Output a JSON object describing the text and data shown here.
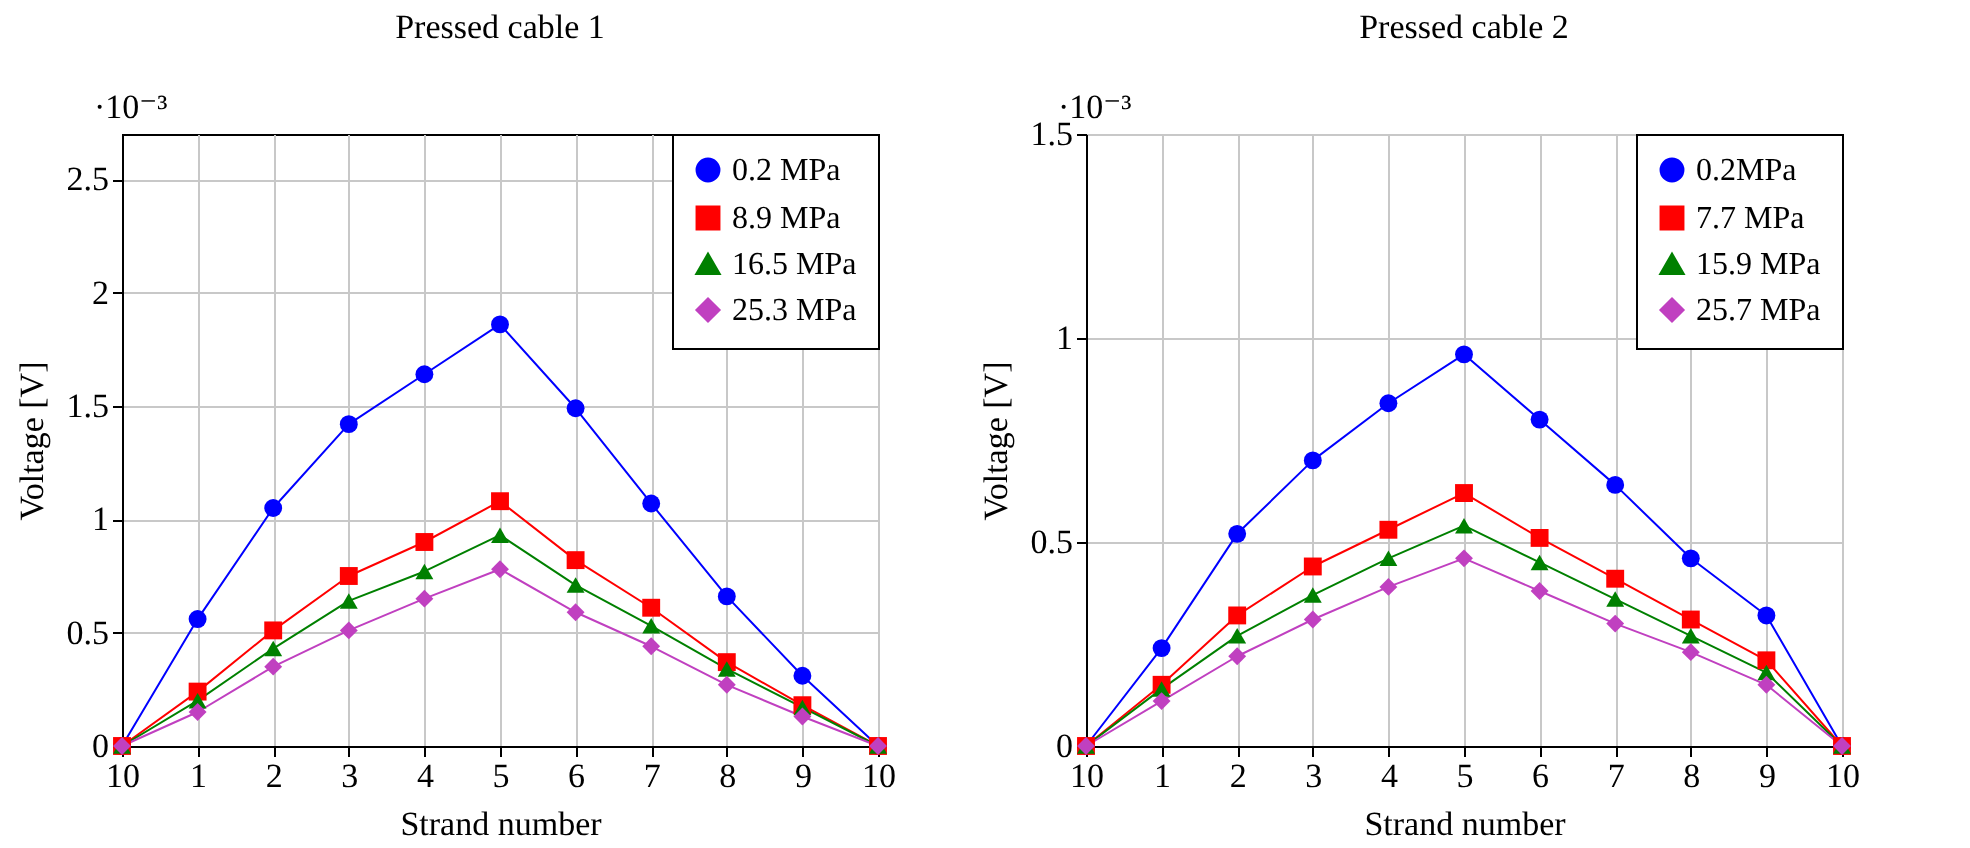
{
  "chart_data": [
    {
      "type": "line",
      "title": "Pressed cable 1",
      "xlabel": "Strand number",
      "ylabel": "Voltage [V]",
      "annotations": [
        "·10⁻³"
      ],
      "categories": [
        "10",
        "1",
        "2",
        "3",
        "4",
        "5",
        "6",
        "7",
        "8",
        "9",
        "10"
      ],
      "ylim": [
        0,
        2.7
      ],
      "yticks": [
        0,
        0.5,
        1,
        1.5,
        2,
        2.5
      ],
      "grid": true,
      "legend": "top right",
      "series": [
        {
          "name": "0.2 MPa",
          "color": "#0000ff",
          "marker": "circle",
          "values": [
            0,
            0.56,
            1.05,
            1.42,
            1.64,
            1.86,
            1.49,
            1.07,
            0.66,
            0.31,
            0
          ]
        },
        {
          "name": "8.9 MPa",
          "color": "#ff0000",
          "marker": "square",
          "values": [
            0,
            0.24,
            0.51,
            0.75,
            0.9,
            1.08,
            0.82,
            0.61,
            0.37,
            0.18,
            0
          ]
        },
        {
          "name": "16.5 MPa",
          "color": "#008000",
          "marker": "triangle",
          "values": [
            0,
            0.2,
            0.43,
            0.64,
            0.77,
            0.93,
            0.71,
            0.53,
            0.34,
            0.17,
            0
          ]
        },
        {
          "name": "25.3 MPa",
          "color": "#c040c0",
          "marker": "diamond",
          "values": [
            0,
            0.15,
            0.35,
            0.51,
            0.65,
            0.78,
            0.59,
            0.44,
            0.27,
            0.13,
            0
          ]
        }
      ]
    },
    {
      "type": "line",
      "title": "Pressed cable 2",
      "xlabel": "Strand number",
      "ylabel": "Voltage [V]",
      "annotations": [
        "·10⁻³"
      ],
      "categories": [
        "10",
        "1",
        "2",
        "3",
        "4",
        "5",
        "6",
        "7",
        "8",
        "9",
        "10"
      ],
      "ylim": [
        0,
        1.5
      ],
      "yticks": [
        0,
        0.5,
        1,
        1.5
      ],
      "grid": true,
      "legend": "top right",
      "series": [
        {
          "name": "0.2MPa",
          "color": "#0000ff",
          "marker": "circle",
          "values": [
            0,
            0.24,
            0.52,
            0.7,
            0.84,
            0.96,
            0.8,
            0.64,
            0.46,
            0.32,
            0
          ]
        },
        {
          "name": "7.7 MPa",
          "color": "#ff0000",
          "marker": "square",
          "values": [
            0,
            0.15,
            0.32,
            0.44,
            0.53,
            0.62,
            0.51,
            0.41,
            0.31,
            0.21,
            0
          ]
        },
        {
          "name": "15.9 MPa",
          "color": "#008000",
          "marker": "triangle",
          "values": [
            0,
            0.14,
            0.27,
            0.37,
            0.46,
            0.54,
            0.45,
            0.36,
            0.27,
            0.18,
            0
          ]
        },
        {
          "name": "25.7 MPa",
          "color": "#c040c0",
          "marker": "diamond",
          "values": [
            0,
            0.11,
            0.22,
            0.31,
            0.39,
            0.46,
            0.38,
            0.3,
            0.23,
            0.15,
            0
          ]
        }
      ]
    }
  ]
}
